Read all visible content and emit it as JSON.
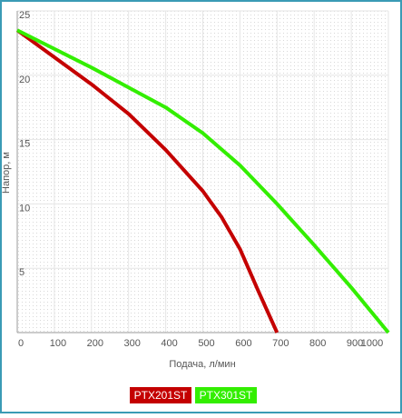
{
  "chart_data": {
    "type": "line",
    "x_label": "Подача, л/мин",
    "y_label": "Напор, м",
    "xlim": [
      0,
      1000
    ],
    "xticks": [
      0,
      100,
      200,
      300,
      400,
      500,
      600,
      700,
      800,
      900,
      1000
    ],
    "ylim": [
      0,
      25
    ],
    "yticks": [
      5,
      10,
      15,
      20,
      25
    ],
    "grid": true,
    "series": [
      {
        "name": "PTX201ST",
        "color": "#c40000",
        "x": [
          0,
          100,
          200,
          300,
          400,
          500,
          550,
          600,
          650,
          700
        ],
        "values": [
          23.5,
          21.4,
          19.3,
          17,
          14.2,
          11,
          9,
          6.5,
          3.2,
          0
        ]
      },
      {
        "name": "PTX301ST",
        "color": "#33ee00",
        "x": [
          0,
          200,
          400,
          500,
          600,
          700,
          800,
          900,
          1000
        ],
        "values": [
          23.5,
          20.6,
          17.5,
          15.5,
          13,
          10,
          6.8,
          3.5,
          0
        ]
      }
    ]
  }
}
